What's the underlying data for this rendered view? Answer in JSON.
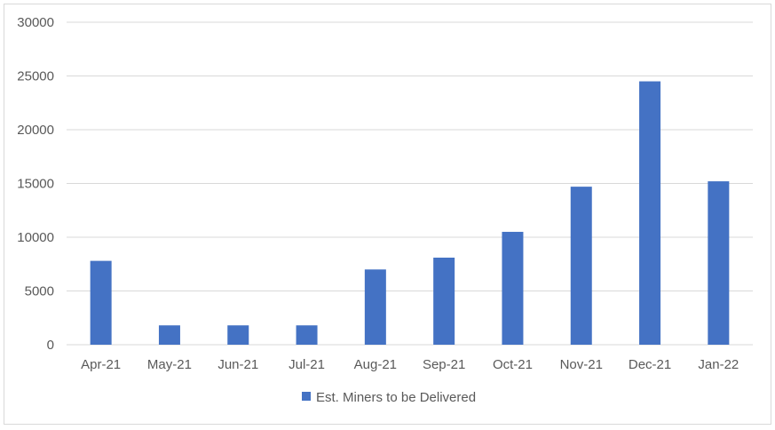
{
  "chart_data": {
    "type": "bar",
    "title": "",
    "xlabel": "",
    "ylabel": "",
    "categories": [
      "Apr-21",
      "May-21",
      "Jun-21",
      "Jul-21",
      "Aug-21",
      "Sep-21",
      "Oct-21",
      "Nov-21",
      "Dec-21",
      "Jan-22"
    ],
    "series": [
      {
        "name": "Est. Miners to be Delivered",
        "color": "#4472C4",
        "values": [
          7800,
          1800,
          1800,
          1800,
          7000,
          8100,
          10500,
          14700,
          24500,
          15200
        ]
      }
    ],
    "ylim": [
      0,
      30000
    ],
    "yticks": [
      0,
      5000,
      10000,
      15000,
      20000,
      25000,
      30000
    ],
    "grid": true,
    "legend_position": "bottom"
  },
  "colors": {
    "gridline": "#D9D9D9",
    "axis_text": "#595959",
    "bar": "#4472C4"
  }
}
